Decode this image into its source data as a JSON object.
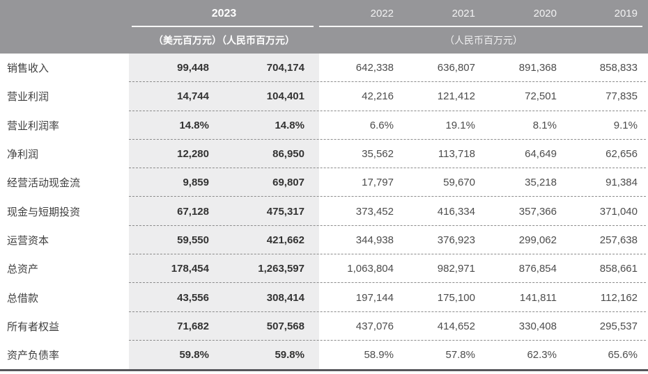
{
  "table": {
    "header": {
      "current_year": "2023",
      "years": [
        "2022",
        "2021",
        "2020",
        "2019"
      ],
      "units_2023": "（美元百万元）（人民币百万元）",
      "units_other": "（人民币百万元）"
    },
    "rows": [
      {
        "label": "销售收入",
        "values": [
          "99,448",
          "704,174",
          "642,338",
          "636,807",
          "891,368",
          "858,833"
        ]
      },
      {
        "label": "营业利润",
        "values": [
          "14,744",
          "104,401",
          "42,216",
          "121,412",
          "72,501",
          "77,835"
        ]
      },
      {
        "label": "营业利润率",
        "values": [
          "14.8%",
          "14.8%",
          "6.6%",
          "19.1%",
          "8.1%",
          "9.1%"
        ]
      },
      {
        "label": "净利润",
        "values": [
          "12,280",
          "86,950",
          "35,562",
          "113,718",
          "64,649",
          "62,656"
        ]
      },
      {
        "label": "经营活动现金流",
        "values": [
          "9,859",
          "69,807",
          "17,797",
          "59,670",
          "35,218",
          "91,384"
        ]
      },
      {
        "label": "现金与短期投资",
        "values": [
          "67,128",
          "475,317",
          "373,452",
          "416,334",
          "357,366",
          "371,040"
        ]
      },
      {
        "label": "运营资本",
        "values": [
          "59,550",
          "421,662",
          "344,938",
          "376,923",
          "299,062",
          "257,638"
        ]
      },
      {
        "label": "总资产",
        "values": [
          "178,454",
          "1,263,597",
          "1,063,804",
          "982,971",
          "876,854",
          "858,661"
        ]
      },
      {
        "label": "总借款",
        "values": [
          "43,556",
          "308,414",
          "197,144",
          "175,100",
          "141,811",
          "112,162"
        ]
      },
      {
        "label": "所有者权益",
        "values": [
          "71,682",
          "507,568",
          "437,076",
          "414,652",
          "330,408",
          "295,537"
        ]
      },
      {
        "label": "资产负债率",
        "values": [
          "59.8%",
          "59.8%",
          "58.9%",
          "57.8%",
          "62.3%",
          "65.6%"
        ]
      }
    ],
    "colors": {
      "header_bg": "#969699",
      "highlight_column_bg": "#ededee",
      "bottom_border": "#55555a",
      "header_text": "#ffffff"
    }
  }
}
